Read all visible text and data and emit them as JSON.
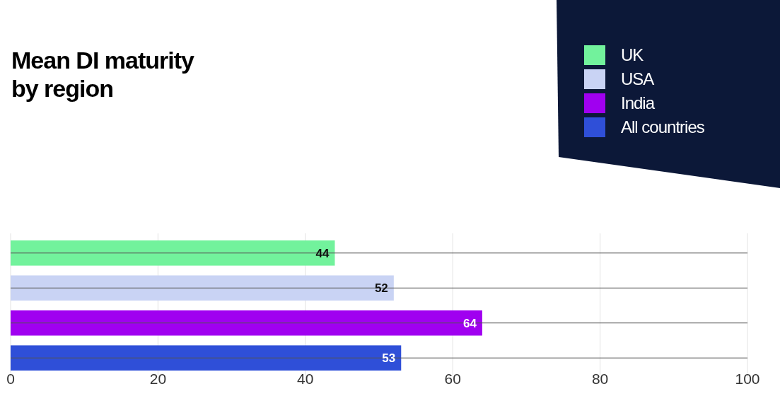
{
  "chart_data": {
    "type": "bar",
    "title": "Mean DI maturity by region",
    "orientation": "horizontal",
    "categories": [
      null,
      null,
      null,
      null
    ],
    "series": [
      {
        "name": "UK",
        "color": "#72f29c",
        "values": [
          44,
          null,
          null,
          null
        ]
      },
      {
        "name": "USA",
        "color": "#c9d3f4",
        "values": [
          null,
          52,
          null,
          null
        ]
      },
      {
        "name": "India",
        "color": "#a000f0",
        "values": [
          null,
          null,
          64,
          null
        ]
      },
      {
        "name": "All countries",
        "color": "#2f4fd8",
        "values": [
          null,
          null,
          null,
          53
        ]
      }
    ],
    "xlim": [
      0,
      100
    ],
    "xticks": [
      0,
      20,
      40,
      60,
      80,
      100
    ],
    "grid": true,
    "legend": "top right",
    "data_labels": true
  }
}
